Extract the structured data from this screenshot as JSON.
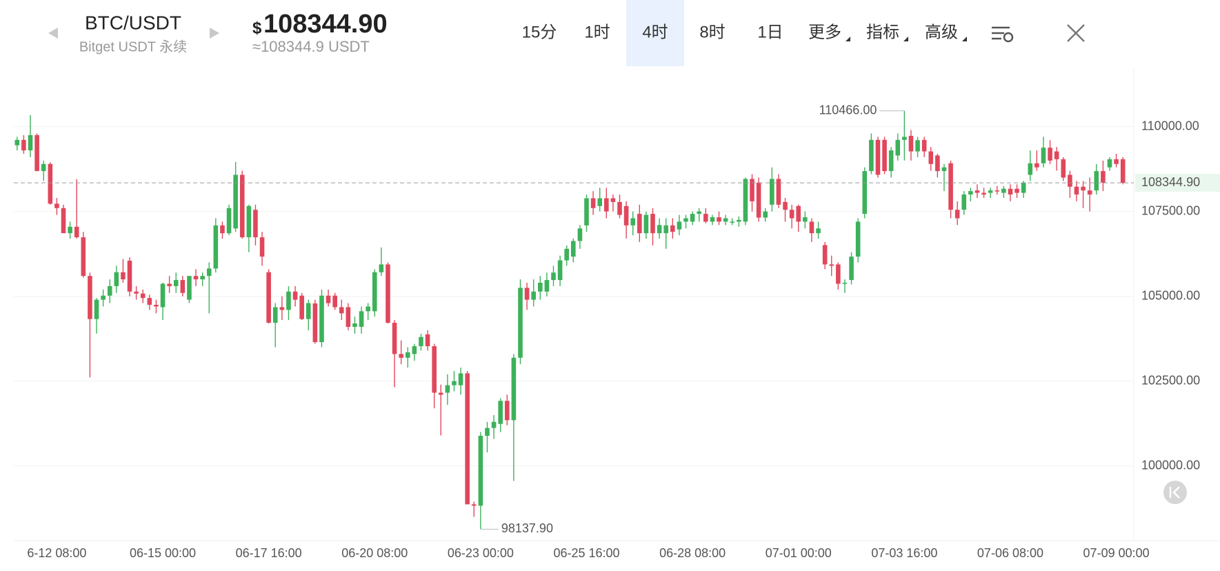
{
  "header": {
    "pair": "BTC/USDT",
    "exchange": "Bitget USDT 永续",
    "currency_symbol": "$",
    "price": "108344.90",
    "approx_price": "≈108344.9 USDT",
    "tabs": [
      {
        "label": "15分"
      },
      {
        "label": "1时"
      },
      {
        "label": "4时"
      },
      {
        "label": "8时"
      },
      {
        "label": "1日"
      },
      {
        "label": "更多",
        "dropdown": true
      },
      {
        "label": "指标",
        "dropdown": true
      },
      {
        "label": "高级",
        "dropdown": true
      }
    ],
    "active_tab": 2
  },
  "chart_data": {
    "type": "candlestick",
    "categories": [
      null,
      null,
      null,
      null,
      null,
      null,
      "6-12 08:00",
      null,
      null,
      null,
      null,
      null,
      null,
      null,
      null,
      null,
      null,
      null,
      null,
      null,
      null,
      null,
      "06-15 00:00",
      null,
      null,
      null,
      null,
      null,
      null,
      null,
      null,
      null,
      null,
      null,
      null,
      null,
      null,
      null,
      "06-17 16:00",
      null,
      null,
      null,
      null,
      null,
      null,
      null,
      null,
      null,
      null,
      null,
      null,
      null,
      null,
      null,
      "06-20 08:00",
      null,
      null,
      null,
      null,
      null,
      null,
      null,
      null,
      null,
      null,
      null,
      null,
      null,
      null,
      null,
      "06-23 00:00",
      null,
      null,
      null,
      null,
      null,
      null,
      null,
      null,
      null,
      null,
      null,
      null,
      null,
      null,
      null,
      "06-25 16:00",
      null,
      null,
      null,
      null,
      null,
      null,
      null,
      null,
      null,
      null,
      null,
      null,
      null,
      null,
      null,
      "06-28 08:00",
      null,
      null,
      null,
      null,
      null,
      null,
      null,
      null,
      null,
      null,
      null,
      null,
      null,
      null,
      null,
      "07-01 00:00",
      null,
      null,
      null,
      null,
      null,
      null,
      null,
      null,
      null,
      null,
      null,
      null,
      null,
      null,
      null,
      "07-03 16:00",
      null,
      null,
      null,
      null,
      null,
      null,
      null,
      null,
      null,
      null,
      null,
      null,
      null,
      null,
      null,
      "07-06 08:00",
      null,
      null,
      null,
      null,
      null,
      null,
      null,
      null,
      null,
      null,
      null,
      null,
      null,
      null,
      null,
      "07-09 00:00",
      null
    ],
    "ohlc": [
      [
        109450,
        109700,
        109300,
        109610
      ],
      [
        109610,
        109750,
        109200,
        109300
      ],
      [
        109300,
        110340,
        109100,
        109750
      ],
      [
        109750,
        109800,
        108700,
        108690
      ],
      [
        108690,
        109000,
        108400,
        108900
      ],
      [
        108900,
        108950,
        107700,
        107730
      ],
      [
        107730,
        107900,
        107400,
        107600
      ],
      [
        107600,
        107700,
        106900,
        106860
      ],
      [
        106860,
        107200,
        106700,
        107050
      ],
      [
        107050,
        108450,
        106700,
        106740
      ],
      [
        106740,
        106900,
        105550,
        105600
      ],
      [
        105600,
        105700,
        102610,
        104330
      ],
      [
        104330,
        104950,
        103900,
        104900
      ],
      [
        104900,
        105200,
        104700,
        105020
      ],
      [
        105020,
        105500,
        104800,
        105300
      ],
      [
        105300,
        105900,
        105100,
        105710
      ],
      [
        105710,
        106100,
        105400,
        105500
      ],
      [
        106050,
        106150,
        105000,
        105140
      ],
      [
        105140,
        105300,
        104900,
        105080
      ],
      [
        105080,
        105200,
        104800,
        104950
      ],
      [
        104950,
        105050,
        104600,
        104750
      ],
      [
        104750,
        104900,
        104500,
        104700
      ],
      [
        104680,
        105400,
        104300,
        105370
      ],
      [
        105370,
        105600,
        105100,
        105300
      ],
      [
        105300,
        105700,
        105100,
        105480
      ],
      [
        105480,
        105600,
        105000,
        105100
      ],
      [
        104900,
        105600,
        104800,
        105600
      ],
      [
        105600,
        105800,
        105300,
        105500
      ],
      [
        105500,
        105700,
        105300,
        105600
      ],
      [
        105600,
        106000,
        104500,
        105820
      ],
      [
        105820,
        107300,
        105700,
        107090
      ],
      [
        107090,
        107200,
        106700,
        106860
      ],
      [
        106860,
        107700,
        106800,
        107600
      ],
      [
        107000,
        108960,
        106900,
        108580
      ],
      [
        108580,
        108700,
        106700,
        106740
      ],
      [
        106740,
        107700,
        106300,
        107660
      ],
      [
        107550,
        107700,
        106500,
        106740
      ],
      [
        106740,
        106900,
        105900,
        106170
      ],
      [
        105710,
        105800,
        104200,
        104220
      ],
      [
        104220,
        104800,
        103500,
        104680
      ],
      [
        104680,
        105000,
        104300,
        104600
      ],
      [
        104600,
        105300,
        104300,
        105140
      ],
      [
        105140,
        105300,
        104700,
        104900
      ],
      [
        105020,
        105100,
        104300,
        104330
      ],
      [
        104330,
        104900,
        104000,
        104800
      ],
      [
        104790,
        104900,
        103600,
        103650
      ],
      [
        103650,
        105200,
        103500,
        105020
      ],
      [
        105020,
        105200,
        104700,
        104800
      ],
      [
        105020,
        105100,
        104600,
        104680
      ],
      [
        104680,
        104900,
        104300,
        104500
      ],
      [
        104680,
        104800,
        104000,
        104100
      ],
      [
        104100,
        104400,
        103900,
        104200
      ],
      [
        104100,
        104700,
        103900,
        104560
      ],
      [
        104560,
        104800,
        104300,
        104700
      ],
      [
        104560,
        105800,
        104400,
        105710
      ],
      [
        105710,
        106440,
        105600,
        105940
      ],
      [
        105940,
        106000,
        104200,
        104220
      ],
      [
        104220,
        104300,
        102320,
        103300
      ],
      [
        103300,
        103700,
        103000,
        103190
      ],
      [
        103190,
        103500,
        102900,
        103350
      ],
      [
        103300,
        103600,
        103100,
        103530
      ],
      [
        103530,
        103900,
        103400,
        103800
      ],
      [
        103880,
        104000,
        103400,
        103530
      ],
      [
        103530,
        103600,
        101700,
        102160
      ],
      [
        102160,
        102400,
        100900,
        102100
      ],
      [
        102160,
        102700,
        101800,
        102380
      ],
      [
        102380,
        102800,
        102200,
        102500
      ],
      [
        102380,
        102900,
        102100,
        102730
      ],
      [
        102730,
        102800,
        98900,
        98870
      ],
      [
        98870,
        98950,
        98500,
        98830
      ],
      [
        98830,
        101000,
        98137.9,
        100890
      ],
      [
        100890,
        101300,
        100400,
        101120
      ],
      [
        101120,
        101500,
        100800,
        101300
      ],
      [
        101240,
        102000,
        101000,
        101920
      ],
      [
        101920,
        102100,
        101200,
        101350
      ],
      [
        101350,
        103300,
        99560,
        103190
      ],
      [
        103190,
        105500,
        103000,
        105250
      ],
      [
        105250,
        105400,
        104600,
        104900
      ],
      [
        104900,
        105500,
        104700,
        105140
      ],
      [
        105140,
        105600,
        104900,
        105400
      ],
      [
        105140,
        105700,
        105000,
        105480
      ],
      [
        105480,
        105900,
        105300,
        105700
      ],
      [
        105480,
        106200,
        105300,
        106060
      ],
      [
        106060,
        106500,
        105900,
        106400
      ],
      [
        106170,
        106700,
        106000,
        106630
      ],
      [
        106630,
        107100,
        106400,
        107000
      ],
      [
        107090,
        108000,
        106900,
        107890
      ],
      [
        107890,
        108100,
        107400,
        107600
      ],
      [
        107660,
        108200,
        107500,
        107890
      ],
      [
        107890,
        108200,
        107300,
        107500
      ],
      [
        107890,
        108000,
        107500,
        107780
      ],
      [
        107780,
        108000,
        107300,
        107400
      ],
      [
        107660,
        107800,
        106700,
        107090
      ],
      [
        107090,
        107500,
        106800,
        107300
      ],
      [
        107430,
        107700,
        106600,
        106860
      ],
      [
        106860,
        107500,
        106700,
        107400
      ],
      [
        107430,
        107600,
        106500,
        106860
      ],
      [
        106860,
        107300,
        106700,
        107100
      ],
      [
        106860,
        107300,
        106400,
        107090
      ],
      [
        107090,
        107300,
        106700,
        106900
      ],
      [
        106970,
        107400,
        106800,
        107200
      ],
      [
        107200,
        107400,
        107000,
        107300
      ],
      [
        107200,
        107500,
        107100,
        107430
      ],
      [
        107430,
        107600,
        107200,
        107500
      ],
      [
        107430,
        107600,
        107150,
        107200
      ],
      [
        107200,
        107400,
        107100,
        107330
      ],
      [
        107330,
        107500,
        107100,
        107200
      ],
      [
        107200,
        107400,
        107100,
        107300
      ],
      [
        107200,
        107300,
        107100,
        107200
      ],
      [
        107200,
        107350,
        107050,
        107250
      ],
      [
        107200,
        108500,
        107100,
        108460
      ],
      [
        108460,
        108600,
        107500,
        107800
      ],
      [
        108350,
        108500,
        107200,
        107320
      ],
      [
        107320,
        107600,
        107200,
        107500
      ],
      [
        107700,
        108800,
        107500,
        108460
      ],
      [
        108460,
        108600,
        107600,
        107700
      ],
      [
        107780,
        107900,
        107200,
        107550
      ],
      [
        107550,
        107700,
        107000,
        107300
      ],
      [
        107660,
        107700,
        106900,
        107200
      ],
      [
        107200,
        107500,
        107000,
        107330
      ],
      [
        107200,
        107300,
        106600,
        106860
      ],
      [
        106860,
        107200,
        106700,
        107000
      ],
      [
        106510,
        106600,
        105800,
        105940
      ],
      [
        105940,
        106200,
        105600,
        105900
      ],
      [
        105940,
        106000,
        105200,
        105370
      ],
      [
        105370,
        105500,
        105100,
        105400
      ],
      [
        105480,
        106300,
        105350,
        106170
      ],
      [
        106170,
        107300,
        106000,
        107200
      ],
      [
        107430,
        108800,
        107300,
        108690
      ],
      [
        108690,
        109800,
        108600,
        109610
      ],
      [
        109610,
        109700,
        108500,
        108580
      ],
      [
        109610,
        109700,
        108600,
        108690
      ],
      [
        108690,
        109400,
        108500,
        109300
      ],
      [
        109150,
        109800,
        109000,
        109610
      ],
      [
        109610,
        110466,
        109000,
        109700
      ],
      [
        109730,
        109900,
        109000,
        109270
      ],
      [
        109270,
        109700,
        109100,
        109600
      ],
      [
        109610,
        109700,
        109100,
        109270
      ],
      [
        109270,
        109400,
        108700,
        108900
      ],
      [
        109150,
        109200,
        108500,
        108690
      ],
      [
        108690,
        108900,
        108100,
        108800
      ],
      [
        108920,
        109000,
        107300,
        107550
      ],
      [
        107550,
        107800,
        107100,
        107300
      ],
      [
        107550,
        108100,
        107400,
        108000
      ],
      [
        108000,
        108200,
        107800,
        108100
      ],
      [
        108120,
        108300,
        107900,
        108050
      ],
      [
        108050,
        108200,
        107900,
        108000
      ],
      [
        108050,
        108200,
        107900,
        108120
      ],
      [
        108120,
        108250,
        108000,
        108100
      ],
      [
        108050,
        108250,
        107900,
        108170
      ],
      [
        108170,
        108300,
        107800,
        108000
      ],
      [
        108170,
        108300,
        107900,
        108050
      ],
      [
        108050,
        108400,
        107900,
        108350
      ],
      [
        108580,
        109300,
        108400,
        108920
      ],
      [
        108920,
        109300,
        108700,
        108800
      ],
      [
        108920,
        109700,
        108800,
        109380
      ],
      [
        109380,
        109600,
        108900,
        109000
      ],
      [
        109270,
        109400,
        108700,
        109040
      ],
      [
        109040,
        109100,
        108400,
        108500
      ],
      [
        108580,
        108700,
        107900,
        108230
      ],
      [
        108230,
        108400,
        107800,
        108000
      ],
      [
        108230,
        108400,
        107600,
        108120
      ],
      [
        108120,
        108500,
        107500,
        108000
      ],
      [
        108120,
        108900,
        108000,
        108690
      ],
      [
        108690,
        109000,
        108100,
        108350
      ],
      [
        108800,
        109100,
        108700,
        109040
      ],
      [
        109040,
        109200,
        108800,
        108900
      ],
      [
        109040,
        109100,
        108300,
        108344.9
      ]
    ],
    "up_color": "#3cb15a",
    "down_color": "#e0475c",
    "ylim": [
      97800,
      111720
    ],
    "yticks": [
      {
        "value": 100000,
        "label": "100000.00"
      },
      {
        "value": 102500,
        "label": "102500.00"
      },
      {
        "value": 105000,
        "label": "105000.00"
      },
      {
        "value": 107500,
        "label": "107500.00"
      },
      {
        "value": 110000,
        "label": "110000.00"
      }
    ],
    "grid": true,
    "last_price_label": "108344.90",
    "high_label": "110466.00",
    "low_label": "98137.90"
  }
}
